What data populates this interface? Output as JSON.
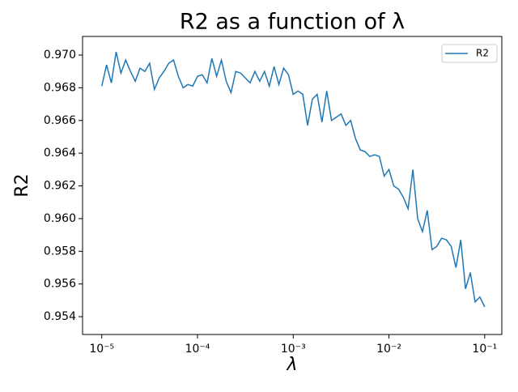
{
  "chart_data": {
    "type": "line",
    "title": "R2 as a function of λ",
    "xlabel": "λ",
    "ylabel": "R2",
    "log_x": true,
    "legend": "upper right",
    "x": [
      1e-05,
      1.122e-05,
      1.259e-05,
      1.413e-05,
      1.585e-05,
      1.778e-05,
      1.995e-05,
      2.239e-05,
      2.512e-05,
      2.818e-05,
      3.162e-05,
      3.548e-05,
      3.981e-05,
      4.467e-05,
      5.012e-05,
      5.623e-05,
      6.31e-05,
      7.079e-05,
      7.943e-05,
      8.913e-05,
      0.0001,
      0.0001122,
      0.0001259,
      0.0001413,
      0.0001585,
      0.0001778,
      0.0001995,
      0.0002239,
      0.0002512,
      0.0002818,
      0.0003162,
      0.0003548,
      0.0003981,
      0.0004467,
      0.0005012,
      0.0005623,
      0.000631,
      0.0007079,
      0.0007943,
      0.0008913,
      0.001,
      0.001122,
      0.001259,
      0.001413,
      0.001585,
      0.001778,
      0.001995,
      0.002239,
      0.002512,
      0.002818,
      0.003162,
      0.003548,
      0.003981,
      0.004467,
      0.005012,
      0.005623,
      0.00631,
      0.007079,
      0.007943,
      0.008913,
      0.01,
      0.01122,
      0.01259,
      0.01413,
      0.01585,
      0.01778,
      0.01995,
      0.02239,
      0.02512,
      0.02818,
      0.03162,
      0.03548,
      0.03981,
      0.04467,
      0.05012,
      0.05623,
      0.0631,
      0.07079,
      0.07943,
      0.08913,
      0.1
    ],
    "series": [
      {
        "name": "R2",
        "color": "#1f77b4",
        "values": [
          0.9681,
          0.9694,
          0.9683,
          0.9702,
          0.9689,
          0.9697,
          0.969,
          0.9684,
          0.9692,
          0.969,
          0.9695,
          0.9679,
          0.9686,
          0.969,
          0.9695,
          0.9697,
          0.9687,
          0.968,
          0.9682,
          0.9681,
          0.9687,
          0.9688,
          0.9683,
          0.9698,
          0.9687,
          0.9697,
          0.9684,
          0.9677,
          0.969,
          0.9689,
          0.9686,
          0.9683,
          0.969,
          0.9684,
          0.969,
          0.9681,
          0.9693,
          0.9682,
          0.9692,
          0.9688,
          0.9676,
          0.9678,
          0.9676,
          0.9657,
          0.9673,
          0.9676,
          0.9659,
          0.9678,
          0.966,
          0.9662,
          0.9664,
          0.9657,
          0.966,
          0.9649,
          0.9642,
          0.9641,
          0.9638,
          0.9639,
          0.9638,
          0.9626,
          0.963,
          0.962,
          0.9618,
          0.9613,
          0.9606,
          0.963,
          0.96,
          0.9592,
          0.9605,
          0.9581,
          0.9583,
          0.9588,
          0.9587,
          0.9583,
          0.957,
          0.9587,
          0.9557,
          0.9567,
          0.9549,
          0.9552,
          0.9546
        ]
      }
    ],
    "xlim": [
      6.3e-06,
      0.151
    ],
    "xticks": [
      {
        "value": 1e-05,
        "label": "10⁻⁵"
      },
      {
        "value": 0.0001,
        "label": "10⁻⁴"
      },
      {
        "value": 0.001,
        "label": "10⁻³"
      },
      {
        "value": 0.01,
        "label": "10⁻²"
      },
      {
        "value": 0.1,
        "label": "10⁻¹"
      }
    ],
    "ylim": [
      0.95291,
      0.97114
    ],
    "yticks": [
      0.954,
      0.956,
      0.958,
      {
        "value": 0.96,
        "label": "0.960"
      },
      0.962,
      0.964,
      0.966,
      0.968,
      {
        "value": 0.97,
        "label": "0.970"
      }
    ]
  }
}
